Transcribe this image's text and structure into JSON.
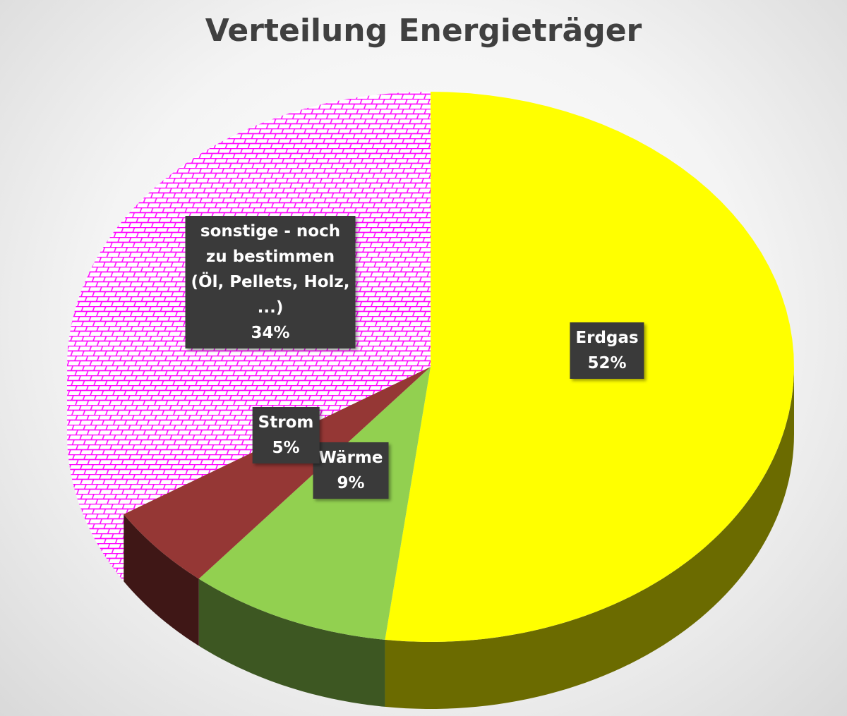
{
  "chart_data": {
    "type": "pie3d",
    "title": "Verteilung Energieträger",
    "categories": [
      "Erdgas",
      "Wärme",
      "Strom",
      "sonstige - noch zu bestimmen (Öl, Pellets, Holz, ...)"
    ],
    "values": [
      52,
      9,
      5,
      34
    ],
    "value_labels": [
      "52%",
      "9%",
      "5%",
      "34%"
    ],
    "colors": [
      "#ffff00",
      "#92d050",
      "#953735",
      "#ff00ff"
    ],
    "fill_patterns": [
      "solid",
      "solid",
      "solid",
      "brick"
    ]
  }
}
